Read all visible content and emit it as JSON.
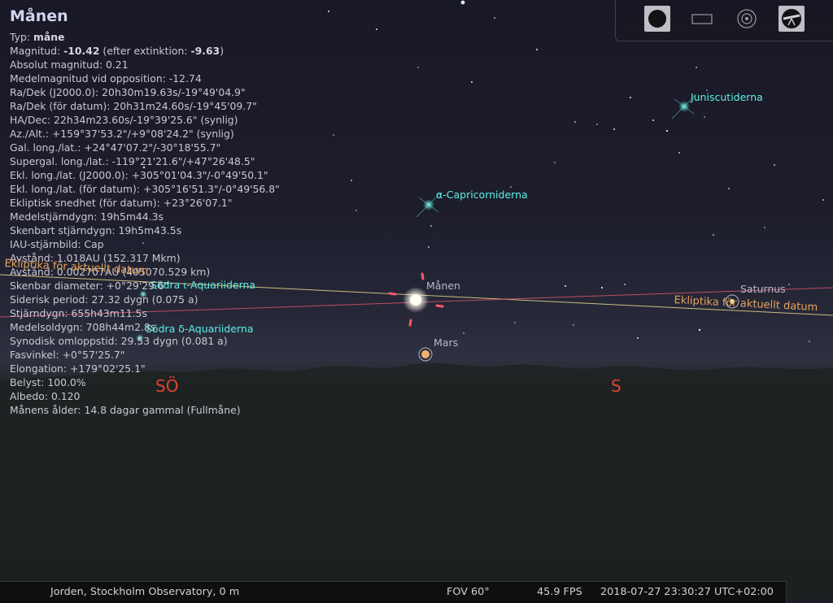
{
  "info": {
    "title": "Månen",
    "lines": [
      {
        "label": "Typ: ",
        "value": "måne",
        "suffix": ""
      },
      {
        "label": "Magnitud: ",
        "value": "-10.42",
        "suffix": " (efter extinktion: ",
        "value2": "-9.63",
        "suffix2": ")"
      },
      {
        "label": "Absolut magnitud: 0.21"
      },
      {
        "label": "Medelmagnitud vid opposition: -12.74"
      },
      {
        "label": "Ra/Dek (J2000.0): 20h30m19.63s/-19°49'04.9\""
      },
      {
        "label": "Ra/Dek (för datum): 20h31m24.60s/-19°45'09.7\""
      },
      {
        "label": "HA/Dec: 22h34m23.60s/-19°39'25.6\" (synlig)"
      },
      {
        "label": "Az./Alt.: +159°37'53.2\"/+9°08'24.2\" (synlig)"
      },
      {
        "label": "Gal. long./lat.: +24°47'07.2\"/-30°18'55.7\""
      },
      {
        "label": "Supergal. long./lat.: -119°21'21.6\"/+47°26'48.5\""
      },
      {
        "label": "Ekl. long./lat. (J2000.0): +305°01'04.3\"/-0°49'50.1\""
      },
      {
        "label": "Ekl. long./lat. (för datum): +305°16'51.3\"/-0°49'56.8\""
      },
      {
        "label": "Ekliptisk snedhet (för datum): +23°26'07.1\""
      },
      {
        "label": "Medelstjärndygn: 19h5m44.3s"
      },
      {
        "label": "Skenbart stjärndygn: 19h5m43.5s"
      },
      {
        "label": "IAU-stjärnbild: Cap"
      },
      {
        "label": "Avstånd: 1.018AU (152.317 Mkm)"
      },
      {
        "label": "Avstånd: 0.002707AU (405070.529 km)"
      },
      {
        "label": "Skenbar diameter: +0°29'29.6\""
      },
      {
        "label": "Siderisk period: 27.32 dygn (0.075 a)"
      },
      {
        "label": "Stjärndygn: 655h43m11.5s"
      },
      {
        "label": "Medelsoldygn: 708h44m2.8s"
      },
      {
        "label": "Synodisk omloppstid: 29.53 dygn (0.081 a)"
      },
      {
        "label": "Fasvinkel: +0°57'25.7\""
      },
      {
        "label": "Elongation: +179°02'25.1\""
      },
      {
        "label": "Belyst: 100.0%"
      },
      {
        "label": "Albedo: 0.120"
      },
      {
        "label": "Månens ålder: 14.8 dagar gammal (Fullmåne)"
      }
    ]
  },
  "sky_labels": {
    "juniscutiderna": "Juniscutiderna",
    "capricorniderna": "α-Capricorniderna",
    "iota_aquariiderna": "Södra ι-Aquariiderna",
    "delta_aquariiderna": "Södra δ-Aquariiderna",
    "moon": "Månen",
    "mars": "Mars",
    "saturnus": "Saturnus",
    "ecliptic_left": "Ekliptika för aktuellt datum",
    "ecliptic_right": "Ekliptika för aktuellt datum",
    "compass_so": "SÖ",
    "compass_s": "S"
  },
  "toolbar": {
    "buttons": [
      {
        "icon": "filled-circle-icon",
        "active": true
      },
      {
        "icon": "rectangle-icon",
        "active": false
      },
      {
        "icon": "target-icon",
        "active": false
      },
      {
        "icon": "telescope-icon",
        "active": false
      }
    ]
  },
  "status": {
    "location": "Jorden, Stockholm Observatory, 0 m",
    "fov": "FOV 60°",
    "fps": "45.9 FPS",
    "datetime": "2018-07-27 23:30:27 UTC+02:00"
  },
  "colors": {
    "meteor_label": "#5ef0e6",
    "ecliptic_line": "#e9d98a",
    "equator_line": "#d9536b",
    "compass": "#e0442f"
  }
}
